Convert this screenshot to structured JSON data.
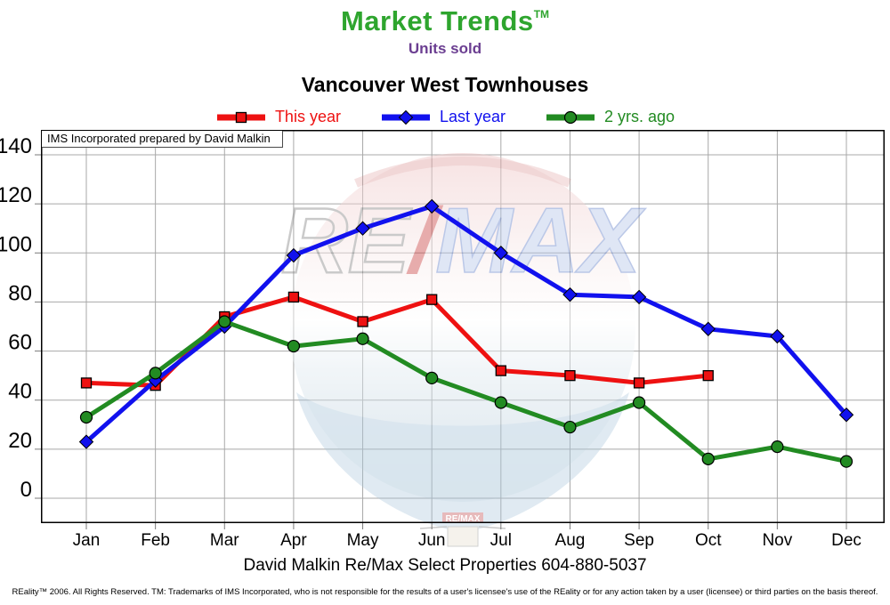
{
  "header": {
    "brand": "Market Trends",
    "trademark": "TM",
    "subtitle": "Units sold",
    "brand_color": "#2EA52E",
    "subtitle_color": "#6B3E91"
  },
  "chart": {
    "title": "Vancouver West Townhouses",
    "annotation": "IMS Incorporated prepared by David Malkin",
    "watermark": "remax-balloon-watermark"
  },
  "chart_data": {
    "type": "line",
    "title": "Vancouver West Townhouses",
    "categories": [
      "Jan",
      "Feb",
      "Mar",
      "Apr",
      "May",
      "Jun",
      "Jul",
      "Aug",
      "Sep",
      "Oct",
      "Nov",
      "Dec"
    ],
    "series": [
      {
        "name": "This year",
        "color": "#EE1111",
        "marker": "square",
        "values": [
          47,
          46,
          74,
          82,
          72,
          81,
          52,
          50,
          47,
          50,
          null,
          null
        ]
      },
      {
        "name": "Last year",
        "color": "#1111EE",
        "marker": "diamond",
        "values": [
          23,
          48,
          70,
          99,
          110,
          119,
          100,
          83,
          82,
          69,
          66,
          34
        ]
      },
      {
        "name": "2 yrs. ago",
        "color": "#228B22",
        "marker": "circle",
        "values": [
          33,
          51,
          72,
          62,
          65,
          49,
          39,
          29,
          39,
          16,
          21,
          15
        ]
      }
    ],
    "xlabel": "",
    "ylabel": "",
    "ylim": [
      -10,
      150
    ],
    "yticks": [
      0,
      20,
      40,
      60,
      80,
      100,
      120,
      140
    ],
    "grid": true,
    "legend_position": "top"
  },
  "footer": {
    "contact": "David Malkin Re/Max Select Properties 604-880-5037",
    "disclaimer": "REality™ 2006. All Rights Reserved. TM: Trademarks of IMS Incorporated, who is not responsible for the results of a user's licensee's use of the REality  or for any action taken by a user (licensee) or third parties on the basis thereof."
  }
}
